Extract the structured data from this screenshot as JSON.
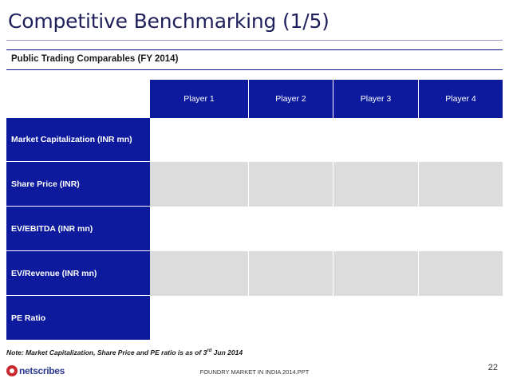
{
  "title": "Competitive Benchmarking (1/5)",
  "section_title": "Public Trading Comparables (FY 2014)",
  "table": {
    "columns": [
      "Player 1",
      "Player 2",
      "Player 3",
      "Player 4"
    ],
    "rows": [
      "Market Capitalization (INR mn)",
      "Share Price (INR)",
      "EV/EBITDA (INR mn)",
      "EV/Revenue (INR mn)",
      "PE Ratio"
    ]
  },
  "note": {
    "prefix": "Note: Market Capitalization, Share Price and PE ratio is as of 3",
    "sup": "rd",
    "suffix": " Jun 2014"
  },
  "footer": {
    "logo_text": "netscribes",
    "center_text": "FOUNDRY MARKET IN INDIA 2014.PPT",
    "page_number": "22"
  },
  "colors": {
    "header_blue": "#0d1a9e",
    "stripe_grey": "#dcdcdc",
    "title_navy": "#1f1f5c"
  }
}
